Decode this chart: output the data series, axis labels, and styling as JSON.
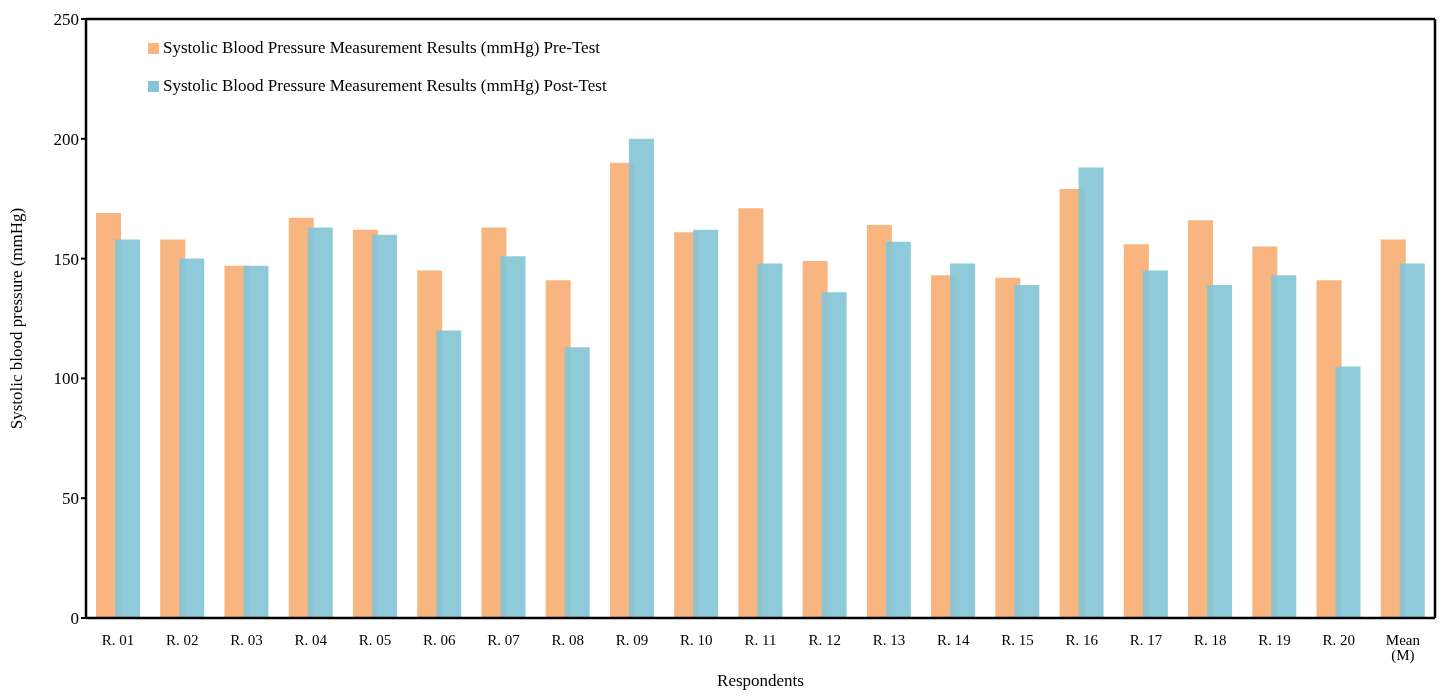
{
  "chart_data": {
    "type": "bar",
    "xlabel": "Respondents",
    "ylabel": "Systolic blood pressure (mmHg)",
    "categories": [
      "R. 01",
      "R. 02",
      "R. 03",
      "R. 04",
      "R. 05",
      "R. 06",
      "R. 07",
      "R. 08",
      "R. 09",
      "R. 10",
      "R. 11",
      "R. 12",
      "R. 13",
      "R. 14",
      "R. 15",
      "R. 16",
      "R. 17",
      "R. 18",
      "R. 19",
      "R. 20",
      "Mean (M)"
    ],
    "series": [
      {
        "name": "Systolic Blood Pressure Measurement Results (mmHg) Pre-Test",
        "color": "#f8b57f",
        "values": [
          169,
          158,
          147,
          167,
          162,
          145,
          163,
          141,
          190,
          161,
          171,
          149,
          164,
          143,
          142,
          179,
          156,
          166,
          155,
          141,
          158
        ]
      },
      {
        "name": "Systolic Blood Pressure Measurement Results (mmHg) Post-Test",
        "color": "#84c5d6",
        "values": [
          158,
          150,
          147,
          163,
          160,
          120,
          151,
          113,
          200,
          162,
          148,
          136,
          157,
          148,
          139,
          188,
          145,
          139,
          143,
          105,
          148
        ]
      }
    ],
    "ylim": [
      0,
      250
    ],
    "yticks": [
      0,
      50,
      100,
      150,
      200,
      250
    ],
    "grid": false,
    "legend": "top left"
  }
}
